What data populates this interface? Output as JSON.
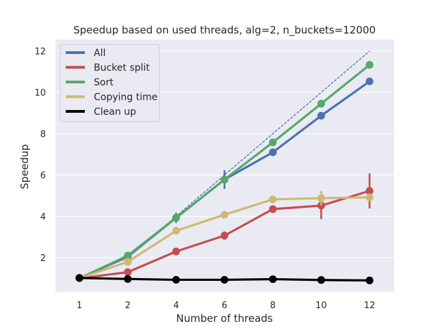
{
  "chart_data": {
    "type": "line",
    "title": "Speedup based on used threads, alg=2, n_buckets=12000",
    "xlabel": "Number of threads",
    "ylabel": "Speedup",
    "categories": [
      "1",
      "2",
      "4",
      "6",
      "8",
      "10",
      "12"
    ],
    "ylim": [
      0.35,
      12.55
    ],
    "yticks": [
      2,
      4,
      6,
      8,
      10,
      12
    ],
    "grid": true,
    "legend_position": "top-left",
    "background": "#eaeaf2",
    "ideal_line": {
      "color": "#4c72b0",
      "style": "dashed",
      "values": [
        1,
        2,
        4,
        6,
        8,
        10,
        12
      ]
    },
    "series": [
      {
        "name": "All",
        "color": "#4c72b0",
        "values": [
          1.0,
          2.05,
          3.93,
          5.78,
          7.1,
          8.87,
          10.53
        ],
        "err": [
          0,
          0,
          0.25,
          0.45,
          0,
          0,
          0
        ]
      },
      {
        "name": "Bucket split",
        "color": "#c44e52",
        "values": [
          1.0,
          1.3,
          2.3,
          3.07,
          4.35,
          4.52,
          5.23
        ],
        "err": [
          0,
          0,
          0,
          0.2,
          0,
          0.65,
          0.85
        ]
      },
      {
        "name": "Sort",
        "color": "#55a868",
        "values": [
          1.0,
          2.1,
          3.93,
          5.78,
          7.58,
          9.45,
          11.33
        ],
        "err": [
          0,
          0,
          0,
          0,
          0,
          0,
          0
        ]
      },
      {
        "name": "Copying time",
        "color": "#ccb974",
        "values": [
          1.0,
          1.8,
          3.3,
          4.08,
          4.82,
          4.88,
          4.92
        ],
        "err": [
          0,
          0,
          0,
          0.15,
          0,
          0.35,
          0
        ]
      },
      {
        "name": "Clean up",
        "color": "#000000",
        "values": [
          1.02,
          0.97,
          0.93,
          0.93,
          0.96,
          0.92,
          0.9
        ],
        "err": [
          0,
          0,
          0,
          0,
          0,
          0,
          0
        ]
      }
    ]
  }
}
